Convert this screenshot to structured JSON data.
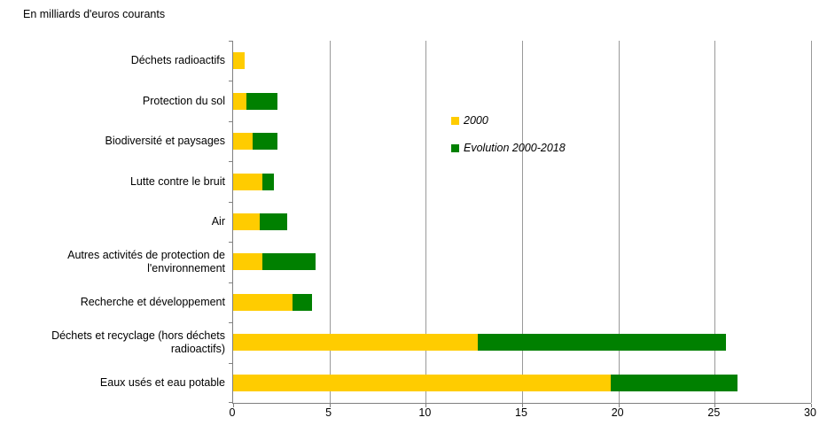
{
  "title": "En milliards d'euros courants",
  "colors": {
    "series_2000": "#FFCC00",
    "series_evolution": "#008000",
    "gridline": "#999999",
    "axis": "#808080",
    "text": "#000000"
  },
  "legend": {
    "items": [
      {
        "label": "2000",
        "color": "#FFCC00"
      },
      {
        "label": "Evolution 2000-2018",
        "color": "#008000"
      }
    ]
  },
  "chart_data": {
    "type": "bar",
    "orientation": "horizontal",
    "stacked": true,
    "title": "En milliards d'euros courants",
    "categories": [
      "Déchets radioactifs",
      "Protection du sol",
      "Biodiversité et paysages",
      "Lutte contre le bruit",
      "Air",
      "Autres activités de protection de l'environnement",
      "Recherche et développement",
      "Déchets et recyclage (hors déchets radioactifs)",
      "Eaux usés et eau potable"
    ],
    "series": [
      {
        "name": "2000",
        "color": "#FFCC00",
        "values": [
          0.6,
          0.7,
          1.0,
          1.5,
          1.4,
          1.5,
          3.1,
          12.7,
          19.6
        ]
      },
      {
        "name": "Evolution 2000-2018",
        "color": "#008000",
        "values": [
          0.0,
          1.6,
          1.3,
          0.6,
          1.4,
          2.8,
          1.0,
          12.9,
          6.6
        ]
      }
    ],
    "xlim": [
      0,
      30
    ],
    "xticks": [
      0,
      5,
      10,
      15,
      20,
      25,
      30
    ],
    "grid": "vertical",
    "legend_position": "inside-upper-middle"
  }
}
